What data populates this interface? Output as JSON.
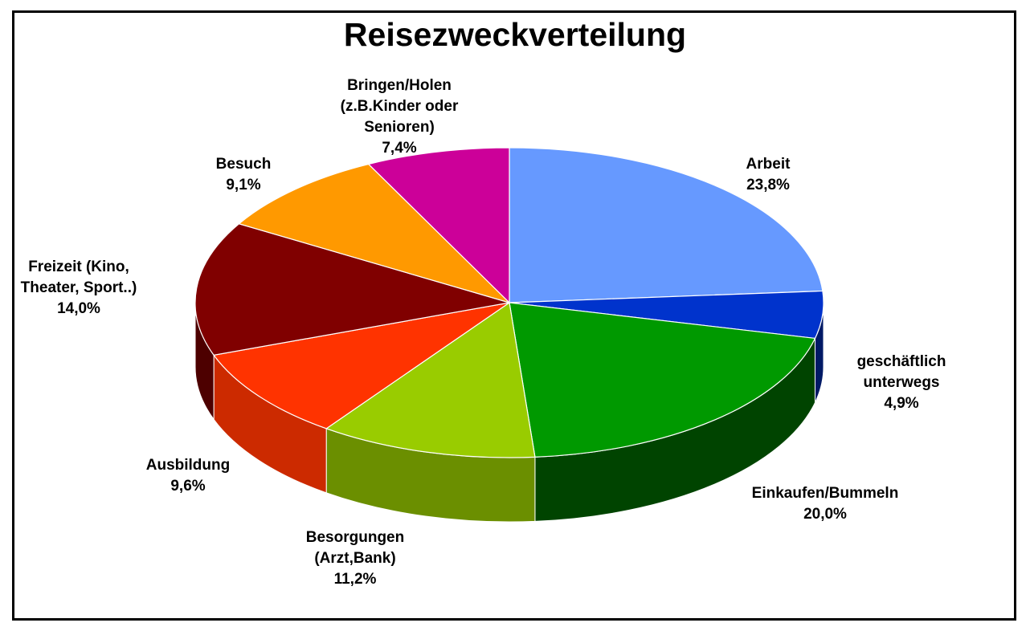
{
  "chart_data": {
    "type": "pie",
    "title": "Reisezweckverteilung",
    "slices": [
      {
        "label": [
          "Arbeit"
        ],
        "value": 23.8,
        "value_label": "23,8%",
        "color": "#6699ff",
        "side": "#3b5fb3"
      },
      {
        "label": [
          "geschäftlich",
          "unterwegs"
        ],
        "value": 4.9,
        "value_label": "4,9%",
        "color": "#0033cc",
        "side": "#001a66"
      },
      {
        "label": [
          "Einkaufen/Bummeln"
        ],
        "value": 20.0,
        "value_label": "20,0%",
        "color": "#009900",
        "side": "#004400"
      },
      {
        "label": [
          "Besorgungen",
          "(Arzt,Bank)"
        ],
        "value": 11.2,
        "value_label": "11,2%",
        "color": "#99cc00",
        "side": "#6b8f00"
      },
      {
        "label": [
          "Ausbildung"
        ],
        "value": 9.6,
        "value_label": "9,6%",
        "color": "#ff3300",
        "side": "#cc2a00"
      },
      {
        "label": [
          "Freizeit (Kino,",
          "Theater, Sport..)"
        ],
        "value": 14.0,
        "value_label": "14,0%",
        "color": "#800000",
        "side": "#4d0000"
      },
      {
        "label": [
          "Besuch"
        ],
        "value": 9.1,
        "value_label": "9,1%",
        "color": "#ff9900",
        "side": "#b36b00"
      },
      {
        "label": [
          "Bringen/Holen",
          "(z.B.Kinder oder",
          "Senioren)"
        ],
        "value": 7.4,
        "value_label": "7,4%",
        "color": "#cc0099",
        "side": "#8c006b"
      }
    ]
  }
}
